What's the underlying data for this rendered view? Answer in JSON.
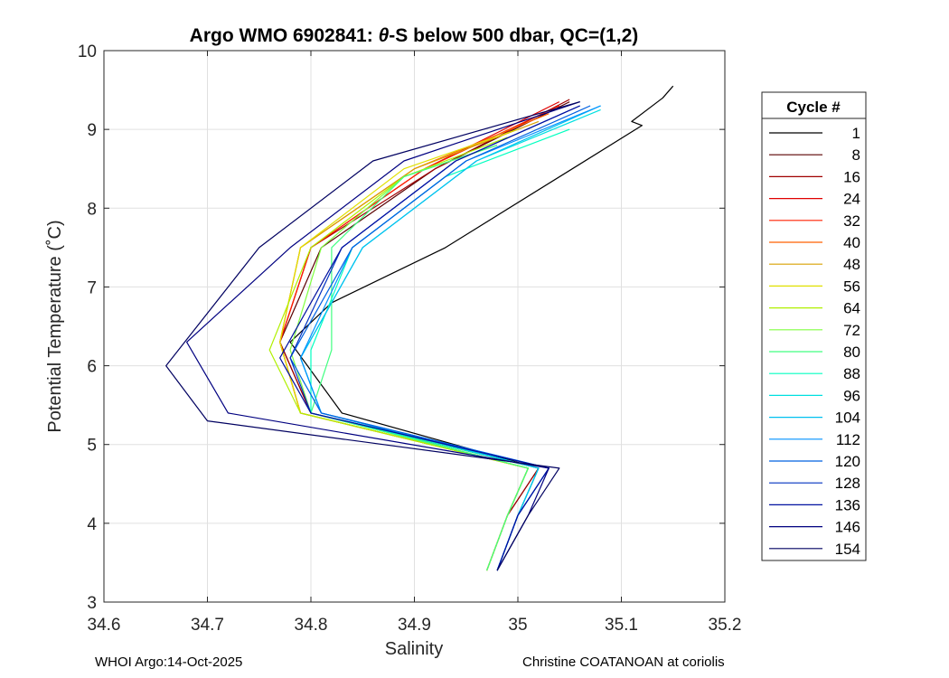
{
  "chart_data": {
    "type": "line",
    "title": "Argo WMO 6902841: θ-S below 500 dbar,  QC=(1,2)",
    "title_prefix": "Argo WMO 6902841: ",
    "title_theta": "θ",
    "title_suffix": "-S below 500 dbar,  QC=(1,2)",
    "xlabel": "Salinity",
    "ylabel": "Potential Temperature (˚C)",
    "xlim": [
      34.6,
      35.2
    ],
    "ylim": [
      3,
      10
    ],
    "xticks": [
      34.6,
      34.7,
      34.8,
      34.9,
      35.0,
      35.1,
      35.2
    ],
    "xtick_labels": [
      "34.6",
      "34.7",
      "34.8",
      "34.9",
      "35",
      "35.1",
      "35.2"
    ],
    "yticks": [
      3,
      4,
      5,
      6,
      7,
      8,
      9,
      10
    ],
    "ytick_labels": [
      "3",
      "4",
      "5",
      "6",
      "7",
      "8",
      "9",
      "10"
    ],
    "grid": true,
    "legend_title": "Cycle #",
    "legend_position": "right-outside",
    "series": [
      {
        "name": "1",
        "color": "#000000",
        "x": [
          35.15,
          35.14,
          35.11,
          35.12,
          34.93,
          34.82,
          34.78,
          34.83,
          35.02,
          35.0,
          34.98
        ],
        "y": [
          9.55,
          9.4,
          9.1,
          9.05,
          7.5,
          6.8,
          6.3,
          5.4,
          4.7,
          4.1,
          3.4
        ]
      },
      {
        "name": "8",
        "color": "#5a0000",
        "x": [
          35.05,
          34.92,
          34.81,
          34.77,
          34.8,
          35.02,
          34.99,
          34.97
        ],
        "y": [
          9.35,
          8.5,
          7.5,
          6.3,
          5.4,
          4.7,
          4.1,
          3.4
        ]
      },
      {
        "name": "16",
        "color": "#a00000",
        "x": [
          35.05,
          34.92,
          34.8,
          34.77,
          34.8,
          35.02,
          34.99,
          34.97
        ],
        "y": [
          9.38,
          8.5,
          7.5,
          6.3,
          5.4,
          4.7,
          4.1,
          3.4
        ]
      },
      {
        "name": "24",
        "color": "#e00000",
        "x": [
          35.04,
          34.91,
          34.8,
          34.77,
          34.79,
          35.01,
          34.99,
          34.97
        ],
        "y": [
          9.35,
          8.5,
          7.5,
          6.3,
          5.4,
          4.7,
          4.1,
          3.4
        ]
      },
      {
        "name": "32",
        "color": "#ff2000",
        "x": [
          35.04,
          34.91,
          34.8,
          34.77,
          34.79,
          35.01,
          34.99,
          34.97
        ],
        "y": [
          9.3,
          8.5,
          7.5,
          6.3,
          5.4,
          4.7,
          4.1,
          3.4
        ]
      },
      {
        "name": "40",
        "color": "#ff6000",
        "x": [
          35.03,
          34.9,
          34.79,
          34.77,
          34.79,
          35.01,
          34.99,
          34.97
        ],
        "y": [
          9.2,
          8.5,
          7.5,
          6.3,
          5.4,
          4.7,
          4.1,
          3.4
        ]
      },
      {
        "name": "48",
        "color": "#d8a000",
        "x": [
          35.02,
          34.9,
          34.79,
          34.77,
          34.79,
          35.01,
          34.99,
          34.97
        ],
        "y": [
          9.1,
          8.5,
          7.5,
          6.3,
          5.4,
          4.7,
          4.1,
          3.4
        ]
      },
      {
        "name": "56",
        "color": "#e0e000",
        "x": [
          35.0,
          34.89,
          34.79,
          34.77,
          34.79,
          35.01,
          34.99,
          34.97
        ],
        "y": [
          9.0,
          8.5,
          7.5,
          6.3,
          5.4,
          4.7,
          4.1,
          3.4
        ]
      },
      {
        "name": "64",
        "color": "#b0f000",
        "x": [
          34.99,
          34.89,
          34.8,
          34.76,
          34.79,
          35.01,
          34.99,
          34.97
        ],
        "y": [
          8.9,
          8.4,
          7.5,
          6.2,
          5.4,
          4.7,
          4.1,
          3.4
        ]
      },
      {
        "name": "72",
        "color": "#80ff40",
        "x": [
          34.98,
          34.89,
          34.81,
          34.78,
          34.8,
          35.01,
          34.99,
          34.97
        ],
        "y": [
          8.8,
          8.4,
          7.5,
          6.2,
          5.4,
          4.7,
          4.1,
          3.4
        ]
      },
      {
        "name": "80",
        "color": "#40ff80",
        "x": [
          34.98,
          34.89,
          34.82,
          34.82,
          34.8,
          35.01,
          34.99,
          34.97
        ],
        "y": [
          8.8,
          8.4,
          7.5,
          6.2,
          5.4,
          4.7,
          4.1,
          3.4
        ]
      },
      {
        "name": "88",
        "color": "#00ffc0",
        "x": [
          35.05,
          34.93,
          34.84,
          34.8,
          34.8,
          35.02,
          35.0,
          34.98
        ],
        "y": [
          9.0,
          8.4,
          7.5,
          6.2,
          5.4,
          4.7,
          4.1,
          3.4
        ]
      },
      {
        "name": "96",
        "color": "#00e0e0",
        "x": [
          35.08,
          34.96,
          34.85,
          34.79,
          34.81,
          35.02,
          35.0,
          34.98
        ],
        "y": [
          9.25,
          8.6,
          7.5,
          6.1,
          5.4,
          4.7,
          4.1,
          3.4
        ]
      },
      {
        "name": "104",
        "color": "#00c0f0",
        "x": [
          35.08,
          34.96,
          34.85,
          34.79,
          34.81,
          35.02,
          35.0,
          34.98
        ],
        "y": [
          9.3,
          8.6,
          7.5,
          6.1,
          5.4,
          4.7,
          4.1,
          3.4
        ]
      },
      {
        "name": "112",
        "color": "#0090ff",
        "x": [
          35.08,
          34.95,
          34.84,
          34.79,
          34.81,
          35.03,
          35.0,
          34.98
        ],
        "y": [
          9.3,
          8.6,
          7.5,
          6.1,
          5.4,
          4.7,
          4.1,
          3.4
        ]
      },
      {
        "name": "120",
        "color": "#0060e0",
        "x": [
          35.07,
          34.95,
          34.84,
          34.78,
          34.81,
          35.03,
          35.0,
          34.98
        ],
        "y": [
          9.3,
          8.6,
          7.5,
          6.1,
          5.4,
          4.7,
          4.1,
          3.4
        ]
      },
      {
        "name": "128",
        "color": "#0030c0",
        "x": [
          35.06,
          34.94,
          34.83,
          34.78,
          34.8,
          35.03,
          35.0,
          34.98
        ],
        "y": [
          9.3,
          8.6,
          7.5,
          6.1,
          5.4,
          4.7,
          4.1,
          3.4
        ]
      },
      {
        "name": "136",
        "color": "#0010a0",
        "x": [
          35.06,
          34.94,
          34.83,
          34.77,
          34.8,
          35.03,
          35.0,
          34.98
        ],
        "y": [
          9.3,
          8.6,
          7.5,
          6.1,
          5.4,
          4.7,
          4.1,
          3.4
        ]
      },
      {
        "name": "146",
        "color": "#000080",
        "x": [
          35.06,
          34.89,
          34.78,
          34.68,
          34.72,
          35.03,
          35.01,
          34.98
        ],
        "y": [
          9.35,
          8.6,
          7.5,
          6.3,
          5.4,
          4.7,
          4.1,
          3.4
        ]
      },
      {
        "name": "154",
        "color": "#000060",
        "x": [
          35.06,
          34.86,
          34.75,
          34.66,
          34.7,
          35.04,
          35.01,
          34.98
        ],
        "y": [
          9.35,
          8.6,
          7.5,
          6.0,
          5.3,
          4.7,
          4.1,
          3.4
        ]
      }
    ]
  },
  "footer": {
    "left": "WHOI Argo:14-Oct-2025",
    "right": "Christine COATANOAN at coriolis"
  }
}
